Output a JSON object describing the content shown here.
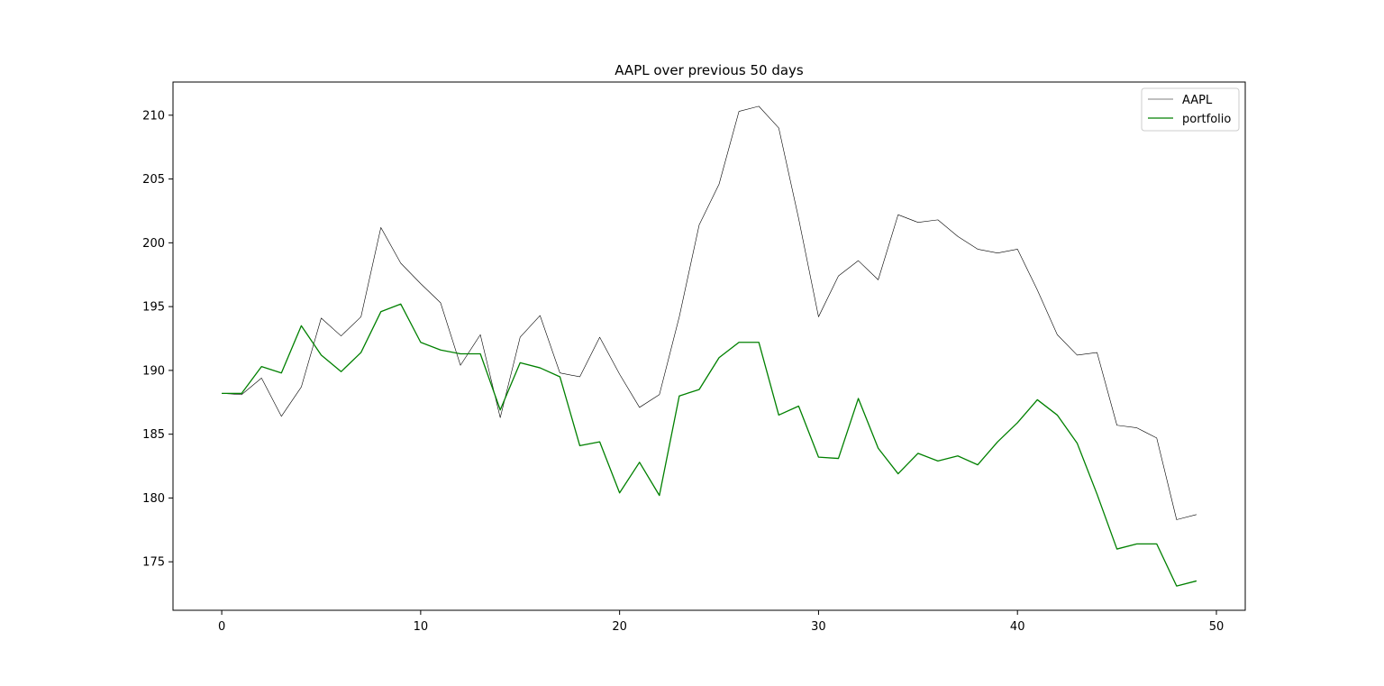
{
  "chart_data": {
    "type": "line",
    "title": "AAPL over previous 50 days",
    "xlabel": "",
    "ylabel": "",
    "xlim": [
      -2.45,
      51.45
    ],
    "ylim": [
      171.2,
      212.6
    ],
    "x_ticks": [
      0,
      10,
      20,
      30,
      40,
      50
    ],
    "y_ticks": [
      175,
      180,
      185,
      190,
      195,
      200,
      205,
      210
    ],
    "grid": false,
    "legend_position": "top-right",
    "x": [
      0,
      1,
      2,
      3,
      4,
      5,
      6,
      7,
      8,
      9,
      10,
      11,
      12,
      13,
      14,
      15,
      16,
      17,
      18,
      19,
      20,
      21,
      22,
      23,
      24,
      25,
      26,
      27,
      28,
      29,
      30,
      31,
      32,
      33,
      34,
      35,
      36,
      37,
      38,
      39,
      40,
      41,
      42,
      43,
      44,
      45,
      46,
      47,
      48,
      49
    ],
    "series": [
      {
        "name": "AAPL",
        "color": "#000000",
        "values": [
          188.2,
          188.1,
          189.4,
          186.4,
          188.7,
          194.1,
          192.7,
          194.2,
          201.2,
          198.4,
          196.8,
          195.3,
          190.4,
          192.8,
          186.3,
          192.6,
          194.3,
          189.8,
          189.5,
          192.6,
          189.7,
          187.1,
          188.1,
          194.2,
          201.4,
          204.6,
          210.3,
          210.7,
          209.0,
          201.9,
          194.2,
          197.4,
          198.6,
          197.1,
          202.2,
          201.6,
          201.8,
          200.5,
          199.5,
          199.2,
          199.5,
          196.3,
          192.8,
          191.2,
          191.4,
          185.7,
          185.5,
          184.7,
          178.3,
          178.7
        ]
      },
      {
        "name": "portfolio",
        "color": "#008000",
        "values": [
          188.2,
          188.2,
          190.3,
          189.8,
          193.5,
          191.2,
          189.9,
          191.4,
          194.6,
          195.2,
          192.2,
          191.6,
          191.3,
          191.3,
          186.9,
          190.6,
          190.2,
          189.5,
          184.1,
          184.4,
          180.4,
          182.8,
          180.2,
          188.0,
          188.5,
          191.0,
          192.2,
          192.2,
          186.5,
          187.2,
          183.2,
          183.1,
          187.8,
          183.9,
          181.9,
          183.5,
          182.9,
          183.3,
          182.6,
          184.4,
          185.9,
          187.7,
          186.5,
          184.3,
          180.3,
          176.0,
          176.4,
          176.4,
          173.1,
          173.5
        ]
      }
    ]
  }
}
